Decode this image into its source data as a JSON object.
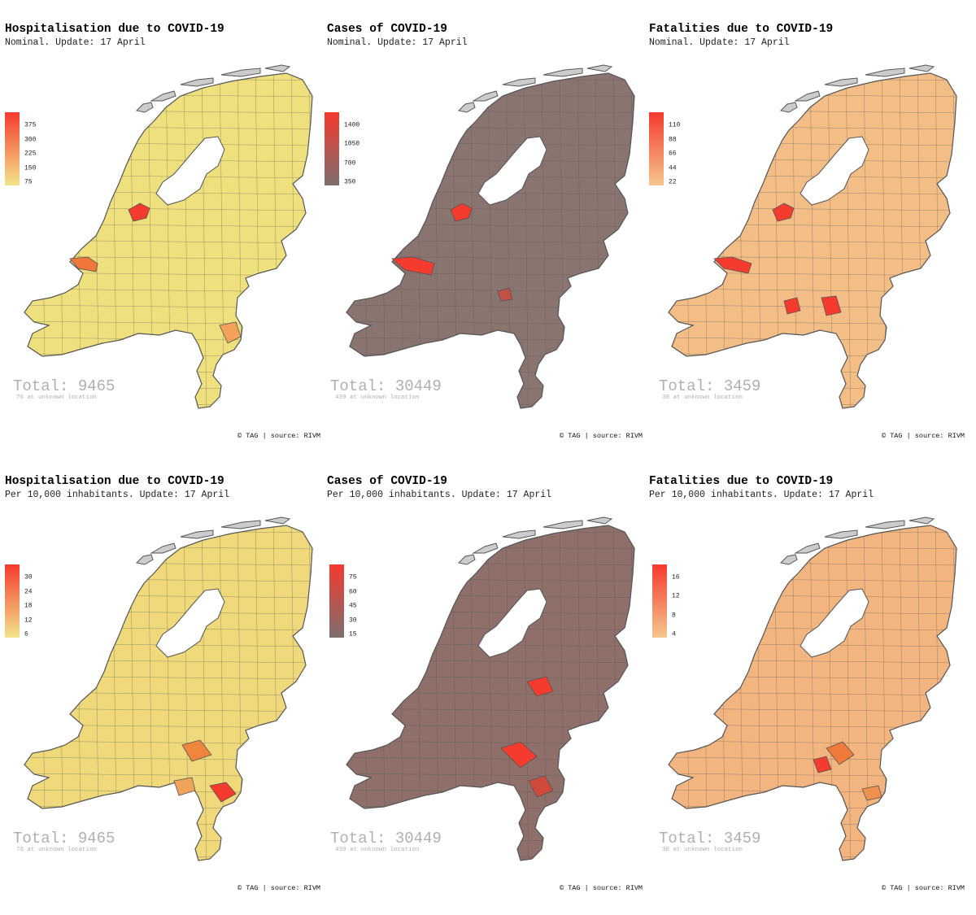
{
  "credit": "© TAG | source: RIVM",
  "map_colors": {
    "border": "#555555",
    "missing": "#cccccc",
    "sea_islands": "#cccccc"
  },
  "panels": [
    {
      "title": "Hospitalisation due to COVID-19",
      "subtitle": "Nominal. Update: 17 April",
      "legend": {
        "ticks": [
          "375",
          "300",
          "225",
          "150",
          "75"
        ],
        "low_color": "#f3e58c",
        "high_color": "#f53a2e"
      },
      "map_fill": "#efe07e",
      "hotspots": [
        "#f53a2e",
        "#f0763a",
        "#f4a259"
      ],
      "total": "Total: 9465",
      "unknown": "76 at unknown location"
    },
    {
      "title": "Cases of COVID-19",
      "subtitle": "Nominal. Update: 17 April",
      "legend": {
        "ticks": [
          "1400",
          "1050",
          "700",
          "350"
        ],
        "low_color": "#7d6f6f",
        "high_color": "#f53a2e"
      },
      "map_fill": "#8a7470",
      "hotspots": [
        "#f53a2e",
        "#c25146",
        "#a5605a"
      ],
      "total": "Total: 30449",
      "unknown": "439 at unknown location"
    },
    {
      "title": "Fatalities due to COVID-19",
      "subtitle": "Nominal. Update: 17 April",
      "legend": {
        "ticks": [
          "110",
          "88",
          "66",
          "44",
          "22"
        ],
        "low_color": "#f5c68e",
        "high_color": "#f53a2e"
      },
      "map_fill": "#f3bd86",
      "hotspots": [
        "#f53a2e",
        "#f0763a",
        "#f08a50"
      ],
      "total": "Total: 3459",
      "unknown": "30 at unknown location"
    },
    {
      "title": "Hospitalisation due to COVID-19",
      "subtitle": "Per 10,000 inhabitants. Update: 17 April",
      "legend": {
        "ticks": [
          "30",
          "24",
          "18",
          "12",
          "6"
        ],
        "low_color": "#f3e58c",
        "high_color": "#f53a2e"
      },
      "map_fill": "#efd97a",
      "hotspots": [
        "#f53a2e",
        "#f0863e",
        "#f0a45a"
      ],
      "total": "Total: 9465",
      "unknown": "76 at unknown location"
    },
    {
      "title": "Cases of COVID-19",
      "subtitle": "Per 10,000 inhabitants. Update: 17 April",
      "legend": {
        "ticks": [
          "75",
          "60",
          "45",
          "30",
          "15"
        ],
        "low_color": "#7d6f6f",
        "high_color": "#f53a2e"
      },
      "map_fill": "#8e6f69",
      "hotspots": [
        "#f53a2e",
        "#d04a3c",
        "#b0574c"
      ],
      "total": "Total: 30449",
      "unknown": "439 at unknown location"
    },
    {
      "title": "Fatalities due to COVID-19",
      "subtitle": "Per 10,000 inhabitants. Update: 17 April",
      "legend": {
        "ticks": [
          "16",
          "12",
          "8",
          "4"
        ],
        "low_color": "#f5c68e",
        "high_color": "#f53a2e"
      },
      "map_fill": "#f3b57f",
      "hotspots": [
        "#f53a2e",
        "#f07a3c",
        "#f0924f"
      ],
      "total": "Total: 3459",
      "unknown": "30 at unknown location"
    }
  ]
}
